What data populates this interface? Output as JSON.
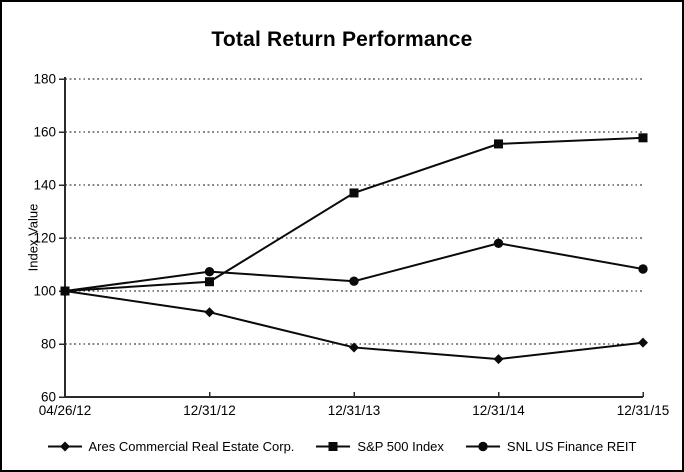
{
  "chart_data": {
    "type": "line",
    "title": "Total Return Performance",
    "xlabel": "",
    "ylabel": "Index Value",
    "categories": [
      "04/26/12",
      "12/31/12",
      "12/31/13",
      "12/31/14",
      "12/31/15"
    ],
    "series": [
      {
        "name": "Ares Commercial Real Estate Corp.",
        "marker": "diamond",
        "values": [
          100,
          92,
          78.7,
          74.3,
          80.5
        ]
      },
      {
        "name": "S&P 500 Index",
        "marker": "square",
        "values": [
          100,
          103.5,
          137,
          155.5,
          157.8
        ]
      },
      {
        "name": "SNL US Finance REIT",
        "marker": "circle",
        "values": [
          100,
          107.3,
          103.7,
          118,
          108.3
        ]
      }
    ],
    "ylim": [
      60,
      180
    ],
    "y_ticks": [
      60,
      80,
      100,
      120,
      140,
      160,
      180
    ],
    "grid": "horizontal-dotted",
    "legend_position": "bottom",
    "colors": {
      "line": "#0a0a0a",
      "axis": "#2a2a2a",
      "gridline": "#111111",
      "text": "#000000",
      "background": "#ffffff",
      "border": "#000000"
    }
  }
}
